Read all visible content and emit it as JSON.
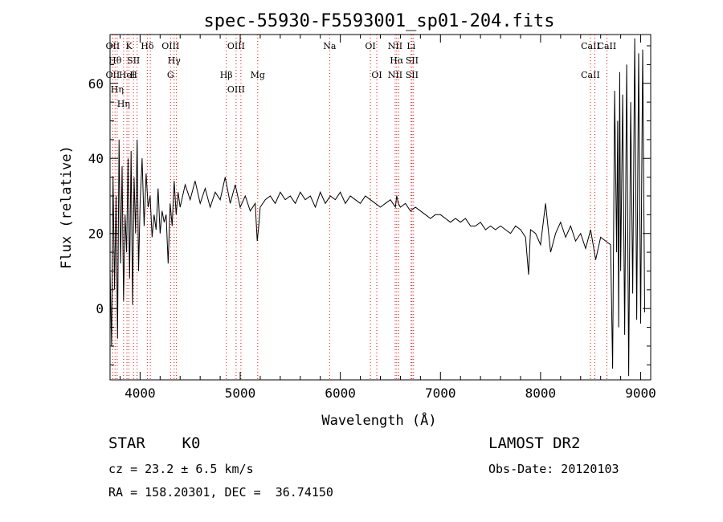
{
  "chart_data": {
    "type": "line",
    "title": "spec-55930-F5593001_sp01-204.fits",
    "xlabel": "Wavelength (Å)",
    "ylabel": "Flux (relative)",
    "xlim": [
      3700,
      9100
    ],
    "ylim": [
      -19,
      73
    ],
    "x_ticks": [
      4000,
      5000,
      6000,
      7000,
      8000,
      9000
    ],
    "y_ticks": [
      0,
      20,
      40,
      60
    ],
    "grid": false,
    "line_color": "#000000",
    "marker_color": "#ff0000",
    "series": [
      {
        "x": [
          3700,
          3715,
          3730,
          3745,
          3760,
          3775,
          3790,
          3805,
          3820,
          3835,
          3850,
          3865,
          3880,
          3895,
          3910,
          3925,
          3940,
          3955,
          3970,
          3985,
          4000,
          4020,
          4040,
          4060,
          4080,
          4100,
          4120,
          4140,
          4160,
          4180,
          4200,
          4220,
          4240,
          4260,
          4280,
          4300,
          4320,
          4340,
          4360,
          4380,
          4400,
          4450,
          4500,
          4550,
          4600,
          4650,
          4700,
          4750,
          4800,
          4850,
          4900,
          4950,
          5000,
          5050,
          5100,
          5150,
          5170,
          5185,
          5200,
          5250,
          5300,
          5350,
          5400,
          5450,
          5500,
          5550,
          5600,
          5650,
          5700,
          5750,
          5800,
          5850,
          5900,
          5950,
          6000,
          6050,
          6100,
          6150,
          6200,
          6250,
          6300,
          6350,
          6400,
          6450,
          6500,
          6550,
          6563,
          6580,
          6600,
          6650,
          6700,
          6750,
          6800,
          6850,
          6900,
          6950,
          7000,
          7050,
          7100,
          7150,
          7200,
          7250,
          7300,
          7350,
          7400,
          7450,
          7500,
          7550,
          7600,
          7650,
          7700,
          7750,
          7800,
          7850,
          7880,
          7900,
          7950,
          8000,
          8050,
          8100,
          8150,
          8200,
          8250,
          8300,
          8350,
          8400,
          8450,
          8500,
          8550,
          8600,
          8650,
          8700,
          8720,
          8740,
          8760,
          8770,
          8780,
          8790,
          8800,
          8820,
          8840,
          8860,
          8880,
          8900,
          8920,
          8940,
          8960,
          8980,
          9000,
          9020,
          9040
        ],
        "y": [
          10,
          -10,
          35,
          5,
          30,
          -8,
          45,
          12,
          38,
          2,
          25,
          15,
          40,
          8,
          42,
          1,
          35,
          20,
          45,
          10,
          28,
          40,
          22,
          36,
          27,
          30,
          19,
          25,
          21,
          32,
          20,
          26,
          23,
          25,
          12,
          28,
          22,
          34,
          25,
          31,
          27,
          33,
          29,
          34,
          28,
          32,
          27,
          31,
          29,
          35,
          28,
          33,
          27,
          30,
          26,
          28,
          18,
          22,
          27,
          29,
          30,
          28,
          31,
          29,
          30,
          28,
          31,
          29,
          30,
          27,
          31,
          28,
          30,
          29,
          31,
          28,
          30,
          29,
          28,
          30,
          29,
          28,
          27,
          28,
          29,
          27,
          30,
          28,
          27,
          28,
          26,
          27,
          26,
          25,
          24,
          25,
          25,
          24,
          23,
          24,
          23,
          24,
          22,
          22,
          23,
          21,
          22,
          21,
          22,
          21,
          20,
          22,
          21,
          19,
          9,
          21,
          20,
          17,
          28,
          15,
          20,
          23,
          19,
          22,
          18,
          20,
          16,
          21,
          13,
          19,
          18,
          17,
          -16,
          58,
          15,
          50,
          -5,
          63,
          10,
          57,
          -7,
          65,
          -18,
          55,
          4,
          72,
          -3,
          68,
          -4,
          69,
          -1
        ]
      }
    ],
    "lines": [
      {
        "x": 3727,
        "top": "OII",
        "bottom": "OII"
      },
      {
        "x": 3750,
        "top": "Hθ",
        "bottom": ""
      },
      {
        "x": 3771,
        "top": "",
        "bottom": "Hη"
      },
      {
        "x": 3835,
        "top": "",
        "bottom": "Hη"
      },
      {
        "x": 3869,
        "top": "HeI",
        "bottom": ""
      },
      {
        "x": 3889,
        "top": "K",
        "bottom": ""
      },
      {
        "x": 3934,
        "top": "SII",
        "bottom": "H"
      },
      {
        "x": 3970,
        "top": "",
        "bottom": ""
      },
      {
        "x": 4072,
        "top": "Hδ",
        "bottom": ""
      },
      {
        "x": 4102,
        "top": "",
        "bottom": ""
      },
      {
        "x": 4304,
        "top": "OIII",
        "bottom": "G"
      },
      {
        "x": 4340,
        "top": "Hγ",
        "bottom": ""
      },
      {
        "x": 4363,
        "top": "",
        "bottom": ""
      },
      {
        "x": 4861,
        "top": "",
        "bottom": "Hβ"
      },
      {
        "x": 4959,
        "top": "OIII",
        "bottom": "OIII"
      },
      {
        "x": 5007,
        "top": "",
        "bottom": ""
      },
      {
        "x": 5175,
        "top": "",
        "bottom": "Mg"
      },
      {
        "x": 5893,
        "top": "Na",
        "bottom": ""
      },
      {
        "x": 6300,
        "top": "OI",
        "bottom": ""
      },
      {
        "x": 6364,
        "top": "",
        "bottom": "OI"
      },
      {
        "x": 6548,
        "top": "NII",
        "bottom": "NII"
      },
      {
        "x": 6563,
        "top": "Hα",
        "bottom": ""
      },
      {
        "x": 6583,
        "top": "",
        "bottom": ""
      },
      {
        "x": 6707,
        "top": "Li",
        "bottom": ""
      },
      {
        "x": 6716,
        "top": "SII",
        "bottom": "SII"
      },
      {
        "x": 6731,
        "top": "",
        "bottom": ""
      },
      {
        "x": 8498,
        "top": "CaII",
        "bottom": "CaII"
      },
      {
        "x": 8542,
        "top": "",
        "bottom": ""
      },
      {
        "x": 8662,
        "top": "CaII",
        "bottom": ""
      }
    ]
  },
  "info": {
    "class_line": "STAR    K0",
    "survey": "LAMOST DR2",
    "cz_line": "cz = 23.2 ± 6.5 km/s",
    "obs_date": "Obs-Date: 20120103",
    "radec_line": "RA = 158.20301, DEC =  36.74150"
  }
}
